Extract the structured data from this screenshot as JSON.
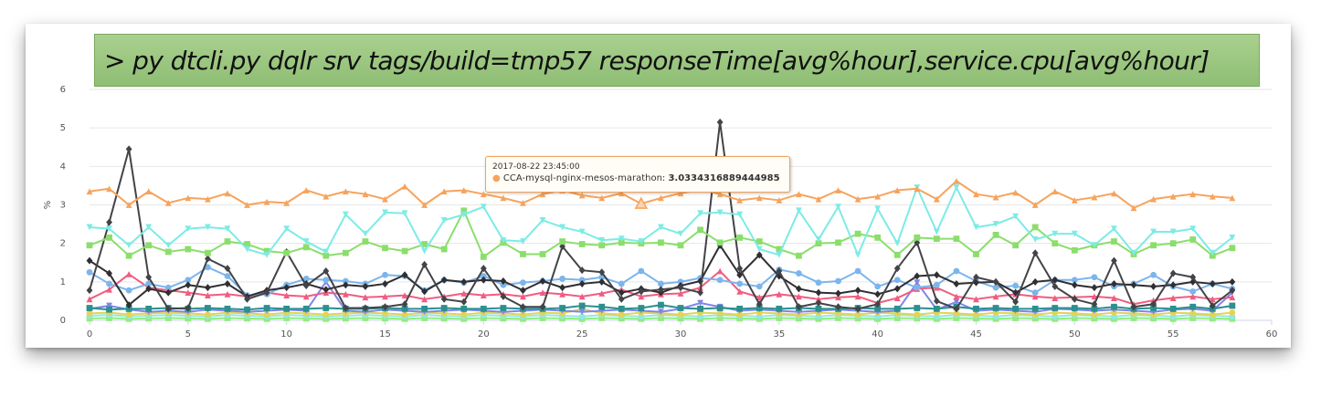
{
  "banner": {
    "command": "> py dtcli.py dqlr srv tags/build=tmp57 responseTime[avg%hour],service.cpu[avg%hour]"
  },
  "tooltip": {
    "date": "2017-08-22 23:45:00",
    "series": "CCA-mysql-nginx-mesos-marathon:",
    "value": "3.0334316889444985",
    "dot": "●"
  },
  "chart_data": {
    "type": "line",
    "ylabel": "%",
    "xlabel": "",
    "xlim": [
      0,
      60
    ],
    "ylim": [
      0,
      6
    ],
    "xticks": [
      0,
      5,
      10,
      15,
      20,
      25,
      30,
      35,
      40,
      45,
      50,
      55,
      60
    ],
    "yticks": [
      0,
      1,
      2,
      3,
      4,
      5,
      6
    ],
    "grid": true,
    "x": [
      0,
      1,
      2,
      3,
      4,
      5,
      6,
      7,
      8,
      9,
      10,
      11,
      12,
      13,
      14,
      15,
      16,
      17,
      18,
      19,
      20,
      21,
      22,
      23,
      24,
      25,
      26,
      27,
      28,
      29,
      30,
      31,
      32,
      33,
      34,
      35,
      36,
      37,
      38,
      39,
      40,
      41,
      42,
      43,
      44,
      45,
      46,
      47,
      48,
      49,
      50,
      51,
      52,
      53,
      54,
      55,
      56,
      57,
      58
    ],
    "series": [
      {
        "color": "#f7a35c",
        "marker": "triangle",
        "values": [
          3.35,
          3.42,
          3.0,
          3.35,
          3.05,
          3.18,
          3.15,
          3.3,
          3.0,
          3.08,
          3.05,
          3.38,
          3.22,
          3.35,
          3.28,
          3.15,
          3.48,
          3.0,
          3.35,
          3.38,
          3.28,
          3.18,
          3.05,
          3.28,
          3.38,
          3.25,
          3.18,
          3.3,
          3.03,
          3.18,
          3.3,
          3.4,
          3.28,
          3.12,
          3.18,
          3.12,
          3.28,
          3.15,
          3.38,
          3.15,
          3.22,
          3.38,
          3.42,
          3.15,
          3.62,
          3.28,
          3.2,
          3.32,
          3.0,
          3.35,
          3.12,
          3.2,
          3.3,
          2.92,
          3.15,
          3.22,
          3.28,
          3.22,
          3.18
        ]
      },
      {
        "color": "#7cebe5",
        "marker": "triangle-down",
        "values": [
          2.42,
          2.38,
          1.95,
          2.42,
          1.95,
          2.38,
          2.42,
          2.38,
          1.85,
          1.7,
          2.38,
          2.05,
          1.78,
          2.75,
          2.25,
          2.8,
          2.78,
          1.8,
          2.6,
          2.75,
          2.95,
          2.08,
          2.05,
          2.6,
          2.42,
          2.3,
          2.08,
          2.12,
          2.05,
          2.42,
          2.25,
          2.78,
          2.8,
          2.75,
          1.85,
          1.7,
          2.85,
          2.1,
          2.95,
          1.7,
          2.9,
          2.0,
          3.45,
          2.3,
          3.45,
          2.42,
          2.5,
          2.7,
          2.1,
          2.25,
          2.25,
          1.95,
          2.38,
          1.75,
          2.3,
          2.3,
          2.38,
          1.75,
          2.15
        ]
      },
      {
        "color": "#8bde6c",
        "marker": "square",
        "values": [
          1.95,
          2.15,
          1.68,
          1.95,
          1.78,
          1.85,
          1.75,
          2.05,
          1.98,
          1.8,
          1.75,
          1.9,
          1.68,
          1.75,
          2.05,
          1.88,
          1.8,
          1.98,
          1.85,
          2.85,
          1.65,
          2.02,
          1.72,
          1.72,
          2.05,
          1.98,
          1.95,
          2.02,
          2.0,
          2.02,
          1.95,
          2.35,
          2.02,
          2.15,
          2.05,
          1.85,
          1.68,
          2.0,
          2.02,
          2.25,
          2.15,
          1.7,
          2.15,
          2.12,
          2.12,
          1.72,
          2.22,
          1.95,
          2.42,
          2.0,
          1.82,
          1.95,
          2.05,
          1.72,
          1.95,
          2.0,
          2.1,
          1.68,
          1.88
        ]
      },
      {
        "color": "#434348",
        "marker": "diamond",
        "values": [
          0.78,
          2.55,
          4.45,
          1.12,
          0.3,
          0.32,
          1.6,
          1.35,
          0.55,
          0.72,
          1.78,
          0.9,
          1.28,
          0.32,
          0.32,
          0.35,
          0.42,
          1.45,
          0.55,
          0.48,
          1.35,
          0.62,
          0.35,
          0.35,
          1.92,
          1.3,
          1.25,
          0.55,
          0.75,
          0.8,
          0.85,
          0.72,
          5.15,
          1.35,
          0.42,
          1.28,
          0.35,
          0.45,
          0.35,
          0.3,
          0.42,
          1.35,
          2.02,
          0.5,
          0.3,
          1.12,
          1.0,
          0.48,
          1.75,
          0.88,
          0.55,
          0.42,
          1.55,
          0.35,
          0.42,
          1.22,
          1.12,
          0.38,
          0.78
        ]
      },
      {
        "color": "#2f2f33",
        "marker": "diamond",
        "values": [
          1.55,
          1.22,
          0.4,
          0.82,
          0.72,
          0.92,
          0.85,
          0.95,
          0.62,
          0.78,
          0.85,
          0.95,
          0.8,
          0.92,
          0.88,
          0.95,
          1.18,
          0.75,
          1.05,
          1.0,
          1.05,
          1.02,
          0.78,
          1.02,
          0.85,
          0.95,
          1.0,
          0.72,
          0.82,
          0.72,
          0.9,
          1.02,
          1.95,
          1.18,
          1.7,
          1.15,
          0.82,
          0.72,
          0.7,
          0.78,
          0.68,
          0.82,
          1.15,
          1.18,
          0.95,
          0.98,
          1.0,
          0.72,
          1.0,
          1.05,
          0.92,
          0.85,
          0.95,
          0.92,
          0.88,
          0.92,
          1.0,
          0.95,
          1.0
        ]
      },
      {
        "color": "#7cb5ec",
        "marker": "circle",
        "values": [
          1.25,
          0.95,
          0.78,
          0.95,
          0.85,
          1.05,
          1.38,
          1.15,
          0.65,
          0.68,
          0.92,
          1.08,
          1.05,
          1.02,
          0.95,
          1.18,
          1.15,
          0.78,
          1.05,
          0.98,
          1.15,
          0.92,
          0.98,
          1.02,
          1.08,
          1.05,
          1.12,
          0.95,
          1.28,
          0.95,
          1.0,
          1.1,
          1.05,
          0.95,
          0.88,
          1.32,
          1.22,
          0.98,
          1.02,
          1.28,
          0.88,
          1.05,
          0.85,
          0.92,
          1.28,
          1.02,
          0.85,
          0.9,
          0.72,
          1.05,
          1.05,
          1.12,
          0.88,
          0.95,
          1.18,
          0.88,
          0.75,
          0.95,
          0.82
        ]
      },
      {
        "color": "#f15c80",
        "marker": "triangle",
        "values": [
          0.55,
          0.8,
          1.2,
          0.85,
          0.78,
          0.72,
          0.65,
          0.68,
          0.62,
          0.72,
          0.65,
          0.62,
          0.72,
          0.68,
          0.6,
          0.62,
          0.65,
          0.55,
          0.62,
          0.7,
          0.65,
          0.68,
          0.62,
          0.72,
          0.68,
          0.62,
          0.7,
          0.8,
          0.62,
          0.68,
          0.7,
          0.85,
          1.28,
          0.75,
          0.6,
          0.68,
          0.62,
          0.55,
          0.6,
          0.62,
          0.45,
          0.58,
          0.82,
          0.85,
          0.62,
          0.55,
          0.62,
          0.68,
          0.62,
          0.58,
          0.6,
          0.62,
          0.58,
          0.42,
          0.52,
          0.58,
          0.62,
          0.55,
          0.6
        ]
      },
      {
        "color": "#2b908f",
        "marker": "square",
        "values": [
          0.32,
          0.28,
          0.3,
          0.3,
          0.32,
          0.3,
          0.32,
          0.3,
          0.28,
          0.32,
          0.3,
          0.3,
          0.32,
          0.3,
          0.3,
          0.32,
          0.3,
          0.3,
          0.32,
          0.3,
          0.3,
          0.32,
          0.3,
          0.3,
          0.32,
          0.38,
          0.35,
          0.3,
          0.32,
          0.4,
          0.32,
          0.3,
          0.32,
          0.3,
          0.32,
          0.3,
          0.32,
          0.3,
          0.3,
          0.32,
          0.3,
          0.3,
          0.32,
          0.3,
          0.35,
          0.3,
          0.32,
          0.3,
          0.3,
          0.32,
          0.32,
          0.3,
          0.35,
          0.3,
          0.32,
          0.3,
          0.35,
          0.3,
          0.38
        ]
      },
      {
        "color": "#8085e9",
        "marker": "triangle-down",
        "values": [
          0.3,
          0.38,
          0.28,
          0.22,
          0.25,
          0.22,
          0.28,
          0.25,
          0.22,
          0.25,
          0.28,
          0.25,
          1.0,
          0.25,
          0.22,
          0.28,
          0.25,
          0.22,
          0.25,
          0.28,
          0.25,
          0.22,
          0.25,
          0.28,
          0.25,
          0.22,
          0.25,
          0.28,
          0.25,
          0.22,
          0.3,
          0.45,
          0.35,
          0.25,
          0.28,
          0.25,
          0.22,
          0.25,
          0.28,
          0.25,
          0.22,
          0.25,
          0.98,
          0.28,
          0.48,
          0.25,
          0.28,
          0.25,
          0.22,
          0.3,
          0.28,
          0.25,
          0.28,
          0.25,
          0.22,
          0.28,
          0.3,
          0.25,
          0.72
        ]
      },
      {
        "color": "#e4d354",
        "marker": "circle",
        "values": [
          0.18,
          0.2,
          0.15,
          0.18,
          0.2,
          0.18,
          0.15,
          0.2,
          0.18,
          0.15,
          0.2,
          0.18,
          0.15,
          0.18,
          0.2,
          0.18,
          0.15,
          0.2,
          0.18,
          0.15,
          0.2,
          0.18,
          0.15,
          0.2,
          0.18,
          0.3,
          0.18,
          0.15,
          0.2,
          0.18,
          0.15,
          0.2,
          0.18,
          0.15,
          0.2,
          0.18,
          0.15,
          0.2,
          0.18,
          0.15,
          0.2,
          0.18,
          0.15,
          0.2,
          0.18,
          0.15,
          0.2,
          0.18,
          0.15,
          0.2,
          0.18,
          0.15,
          0.2,
          0.18,
          0.15,
          0.2,
          0.18,
          0.15,
          0.2
        ]
      },
      {
        "color": "#91e8e1",
        "marker": "circle",
        "values": [
          0.12,
          0.14,
          0.1,
          0.12,
          0.14,
          0.12,
          0.1,
          0.14,
          0.12,
          0.1,
          0.14,
          0.12,
          0.1,
          0.12,
          0.14,
          0.12,
          0.1,
          0.14,
          0.12,
          0.1,
          0.14,
          0.12,
          0.1,
          0.14,
          0.12,
          0.1,
          0.14,
          0.12,
          0.1,
          0.14,
          0.12,
          0.1,
          0.14,
          0.12,
          0.1,
          0.14,
          0.12,
          0.1,
          0.14,
          0.12,
          0.1,
          0.14,
          0.12,
          0.1,
          0.14,
          0.12,
          0.1,
          0.14,
          0.12,
          0.1,
          0.14,
          0.12,
          0.1,
          0.14,
          0.12,
          0.1,
          0.14,
          0.12,
          0.1
        ]
      },
      {
        "color": "#90ed7d",
        "marker": "square",
        "values": [
          0.05,
          0.06,
          0.04,
          0.05,
          0.06,
          0.05,
          0.04,
          0.06,
          0.05,
          0.04,
          0.06,
          0.05,
          0.04,
          0.05,
          0.06,
          0.05,
          0.04,
          0.06,
          0.05,
          0.04,
          0.06,
          0.05,
          0.04,
          0.06,
          0.05,
          0.04,
          0.06,
          0.05,
          0.04,
          0.06,
          0.05,
          0.04,
          0.06,
          0.05,
          0.04,
          0.06,
          0.05,
          0.04,
          0.06,
          0.05,
          0.04,
          0.06,
          0.05,
          0.04,
          0.06,
          0.05,
          0.04,
          0.06,
          0.05,
          0.04,
          0.06,
          0.05,
          0.04,
          0.06,
          0.05,
          0.04,
          0.06,
          0.05,
          0.04
        ]
      }
    ],
    "highlight": {
      "series_color": "#f7a35c",
      "x": 28,
      "y": 3.0334316889444985
    }
  }
}
